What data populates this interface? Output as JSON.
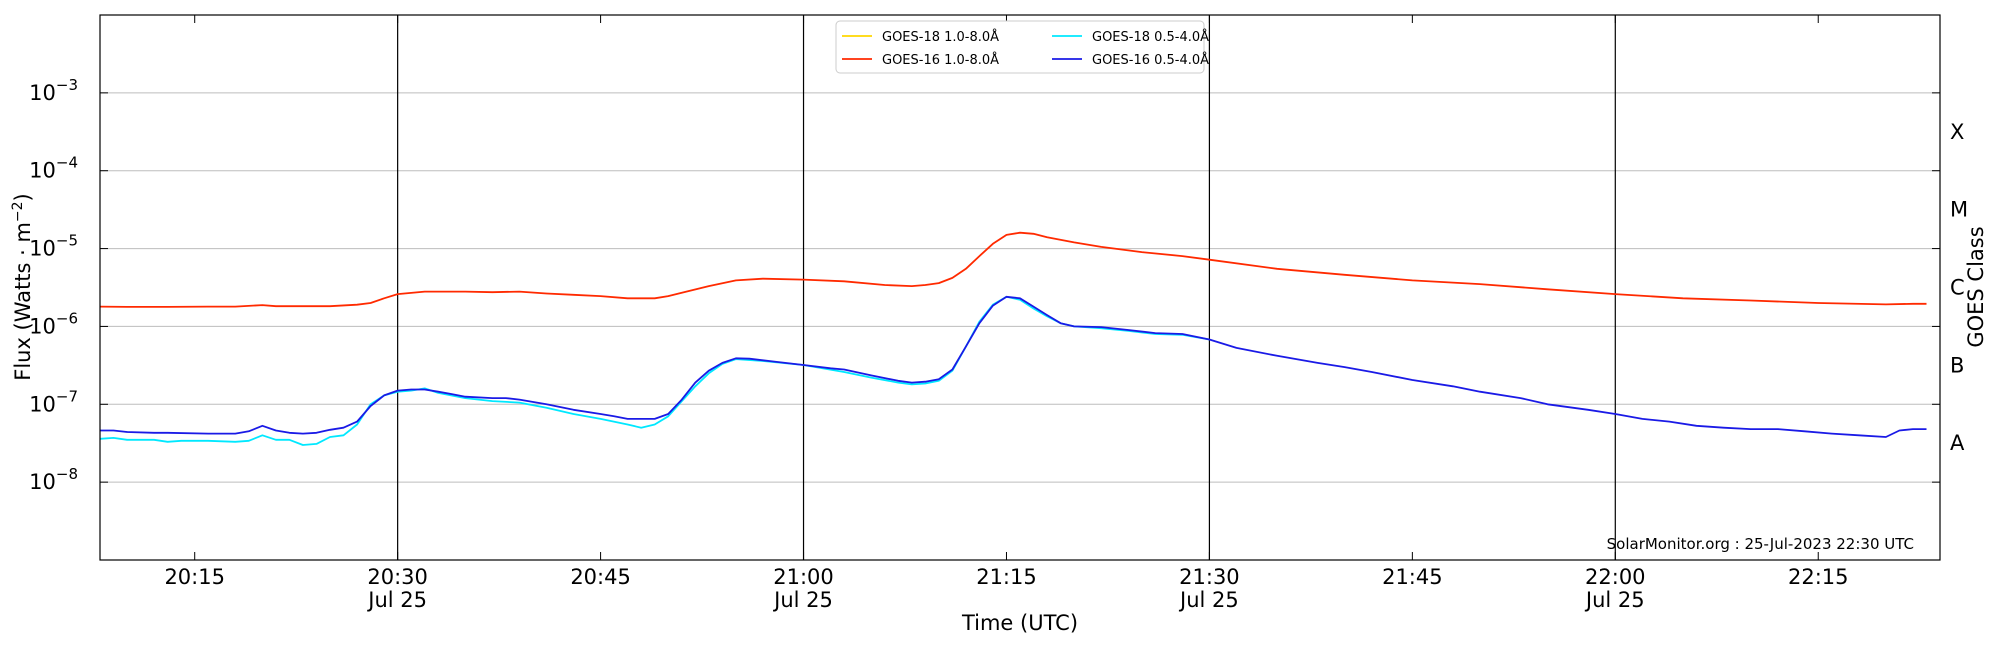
{
  "chart_data": {
    "type": "line",
    "title": "",
    "xlabel": "Time (UTC)",
    "ylabel": "Flux (Watts · m⁻²)",
    "ylabel_right": "GOES Class",
    "yscale": "log",
    "ylim": [
      1e-09,
      0.01
    ],
    "xlim": [
      "20:08",
      "22:24"
    ],
    "y_ticks": [
      {
        "value": 1e-08,
        "base": "10",
        "exp": "−8"
      },
      {
        "value": 1e-07,
        "base": "10",
        "exp": "−7"
      },
      {
        "value": 1e-06,
        "base": "10",
        "exp": "−6"
      },
      {
        "value": 1e-05,
        "base": "10",
        "exp": "−5"
      },
      {
        "value": 0.0001,
        "base": "10",
        "exp": "−4"
      },
      {
        "value": 0.001,
        "base": "10",
        "exp": "−3"
      }
    ],
    "x_ticks": [
      {
        "time": "20:15",
        "label": "20:15",
        "sublabel": ""
      },
      {
        "time": "20:30",
        "label": "20:30",
        "sublabel": "Jul 25"
      },
      {
        "time": "20:45",
        "label": "20:45",
        "sublabel": ""
      },
      {
        "time": "21:00",
        "label": "21:00",
        "sublabel": "Jul 25"
      },
      {
        "time": "21:15",
        "label": "21:15",
        "sublabel": ""
      },
      {
        "time": "21:30",
        "label": "21:30",
        "sublabel": "Jul 25"
      },
      {
        "time": "21:45",
        "label": "21:45",
        "sublabel": ""
      },
      {
        "time": "22:00",
        "label": "22:00",
        "sublabel": "Jul 25"
      },
      {
        "time": "22:15",
        "label": "22:15",
        "sublabel": ""
      }
    ],
    "vertical_lines": [
      "20:30",
      "21:00",
      "21:30",
      "22:00"
    ],
    "class_labels": [
      {
        "label": "A",
        "value": 1e-08
      },
      {
        "label": "B",
        "value": 1e-07
      },
      {
        "label": "C",
        "value": 1e-06
      },
      {
        "label": "M",
        "value": 1e-05
      },
      {
        "label": "X",
        "value": 0.0001
      }
    ],
    "legend_position": "top-center",
    "annotation": "SolarMonitor.org : 25-Jul-2023 22:30 UTC",
    "grid": "horizontal",
    "series": [
      {
        "name": "GOES-18 1.0-8.0Å",
        "color": "#ffd700",
        "points": []
      },
      {
        "name": "GOES-16 1.0-8.0Å",
        "color": "#ff2a00",
        "points": [
          [
            "20:08",
            1.8e-06
          ],
          [
            "20:10",
            1.78e-06
          ],
          [
            "20:13",
            1.78e-06
          ],
          [
            "20:16",
            1.8e-06
          ],
          [
            "20:18",
            1.8e-06
          ],
          [
            "20:20",
            1.88e-06
          ],
          [
            "20:21",
            1.82e-06
          ],
          [
            "20:25",
            1.82e-06
          ],
          [
            "20:27",
            1.9e-06
          ],
          [
            "20:28",
            2e-06
          ],
          [
            "20:29",
            2.3e-06
          ],
          [
            "20:30",
            2.6e-06
          ],
          [
            "20:32",
            2.8e-06
          ],
          [
            "20:35",
            2.8e-06
          ],
          [
            "20:37",
            2.75e-06
          ],
          [
            "20:39",
            2.8e-06
          ],
          [
            "20:41",
            2.65e-06
          ],
          [
            "20:43",
            2.55e-06
          ],
          [
            "20:45",
            2.45e-06
          ],
          [
            "20:47",
            2.3e-06
          ],
          [
            "20:49",
            2.3e-06
          ],
          [
            "20:50",
            2.45e-06
          ],
          [
            "20:51",
            2.7e-06
          ],
          [
            "20:53",
            3.3e-06
          ],
          [
            "20:55",
            3.9e-06
          ],
          [
            "20:57",
            4.1e-06
          ],
          [
            "21:00",
            4e-06
          ],
          [
            "21:03",
            3.8e-06
          ],
          [
            "21:06",
            3.4e-06
          ],
          [
            "21:08",
            3.3e-06
          ],
          [
            "21:09",
            3.4e-06
          ],
          [
            "21:10",
            3.6e-06
          ],
          [
            "21:11",
            4.2e-06
          ],
          [
            "21:12",
            5.5e-06
          ],
          [
            "21:13",
            8e-06
          ],
          [
            "21:14",
            1.15e-05
          ],
          [
            "21:15",
            1.5e-05
          ],
          [
            "21:16",
            1.6e-05
          ],
          [
            "21:17",
            1.55e-05
          ],
          [
            "21:18",
            1.4e-05
          ],
          [
            "21:20",
            1.2e-05
          ],
          [
            "21:22",
            1.05e-05
          ],
          [
            "21:25",
            9e-06
          ],
          [
            "21:28",
            8e-06
          ],
          [
            "21:30",
            7.2e-06
          ],
          [
            "21:35",
            5.5e-06
          ],
          [
            "21:40",
            4.6e-06
          ],
          [
            "21:45",
            3.9e-06
          ],
          [
            "21:50",
            3.5e-06
          ],
          [
            "21:55",
            3e-06
          ],
          [
            "22:00",
            2.6e-06
          ],
          [
            "22:05",
            2.3e-06
          ],
          [
            "22:10",
            2.15e-06
          ],
          [
            "22:15",
            2e-06
          ],
          [
            "22:20",
            1.92e-06
          ],
          [
            "22:22",
            1.95e-06
          ],
          [
            "22:23",
            1.95e-06
          ]
        ]
      },
      {
        "name": "GOES-18 0.5-4.0Å",
        "color": "#00e8ff",
        "points": [
          [
            "20:08",
            3.6e-08
          ],
          [
            "20:09",
            3.7e-08
          ],
          [
            "20:10",
            3.5e-08
          ],
          [
            "20:12",
            3.5e-08
          ],
          [
            "20:13",
            3.3e-08
          ],
          [
            "20:14",
            3.4e-08
          ],
          [
            "20:16",
            3.4e-08
          ],
          [
            "20:18",
            3.3e-08
          ],
          [
            "20:19",
            3.4e-08
          ],
          [
            "20:20",
            4e-08
          ],
          [
            "20:21",
            3.5e-08
          ],
          [
            "20:22",
            3.5e-08
          ],
          [
            "20:23",
            3e-08
          ],
          [
            "20:24",
            3.1e-08
          ],
          [
            "20:25",
            3.8e-08
          ],
          [
            "20:26",
            4e-08
          ],
          [
            "20:27",
            5.5e-08
          ],
          [
            "20:28",
            1e-07
          ],
          [
            "20:29",
            1.3e-07
          ],
          [
            "20:30",
            1.45e-07
          ],
          [
            "20:31",
            1.5e-07
          ],
          [
            "20:32",
            1.6e-07
          ],
          [
            "20:33",
            1.4e-07
          ],
          [
            "20:35",
            1.2e-07
          ],
          [
            "20:37",
            1.1e-07
          ],
          [
            "20:39",
            1.05e-07
          ],
          [
            "20:41",
            9e-08
          ],
          [
            "20:43",
            7.5e-08
          ],
          [
            "20:45",
            6.5e-08
          ],
          [
            "20:47",
            5.5e-08
          ],
          [
            "20:48",
            5e-08
          ],
          [
            "20:49",
            5.5e-08
          ],
          [
            "20:50",
            7e-08
          ],
          [
            "20:51",
            1.1e-07
          ],
          [
            "20:52",
            1.7e-07
          ],
          [
            "20:53",
            2.5e-07
          ],
          [
            "20:54",
            3.3e-07
          ],
          [
            "20:55",
            3.8e-07
          ],
          [
            "20:57",
            3.6e-07
          ],
          [
            "21:00",
            3.2e-07
          ],
          [
            "21:03",
            2.6e-07
          ],
          [
            "21:05",
            2.2e-07
          ],
          [
            "21:07",
            1.9e-07
          ],
          [
            "21:08",
            1.8e-07
          ],
          [
            "21:09",
            1.85e-07
          ],
          [
            "21:10",
            2e-07
          ],
          [
            "21:11",
            2.7e-07
          ],
          [
            "21:12",
            5.5e-07
          ],
          [
            "21:13",
            1.15e-06
          ],
          [
            "21:14",
            1.9e-06
          ],
          [
            "21:15",
            2.4e-06
          ],
          [
            "21:16",
            2.2e-06
          ],
          [
            "21:17",
            1.7e-06
          ],
          [
            "21:18",
            1.35e-06
          ],
          [
            "21:19",
            1.1e-06
          ],
          [
            "21:20",
            1e-06
          ],
          [
            "21:22",
            9.5e-07
          ],
          [
            "21:24",
            8.8e-07
          ],
          [
            "21:26",
            8e-07
          ],
          [
            "21:28",
            7.8e-07
          ],
          [
            "21:30",
            6.8e-07
          ]
        ]
      },
      {
        "name": "GOES-16 0.5-4.0Å",
        "color": "#1a1ae6",
        "points": [
          [
            "20:08",
            4.6e-08
          ],
          [
            "20:09",
            4.6e-08
          ],
          [
            "20:10",
            4.4e-08
          ],
          [
            "20:12",
            4.3e-08
          ],
          [
            "20:13",
            4.3e-08
          ],
          [
            "20:16",
            4.2e-08
          ],
          [
            "20:18",
            4.2e-08
          ],
          [
            "20:19",
            4.5e-08
          ],
          [
            "20:20",
            5.3e-08
          ],
          [
            "20:21",
            4.6e-08
          ],
          [
            "20:22",
            4.3e-08
          ],
          [
            "20:23",
            4.2e-08
          ],
          [
            "20:24",
            4.3e-08
          ],
          [
            "20:25",
            4.7e-08
          ],
          [
            "20:26",
            5e-08
          ],
          [
            "20:27",
            6e-08
          ],
          [
            "20:28",
            9.5e-08
          ],
          [
            "20:29",
            1.3e-07
          ],
          [
            "20:30",
            1.5e-07
          ],
          [
            "20:31",
            1.55e-07
          ],
          [
            "20:32",
            1.55e-07
          ],
          [
            "20:33",
            1.45e-07
          ],
          [
            "20:34",
            1.35e-07
          ],
          [
            "20:35",
            1.25e-07
          ],
          [
            "20:37",
            1.2e-07
          ],
          [
            "20:38",
            1.2e-07
          ],
          [
            "20:39",
            1.15e-07
          ],
          [
            "20:41",
            1e-07
          ],
          [
            "20:43",
            8.5e-08
          ],
          [
            "20:45",
            7.5e-08
          ],
          [
            "20:46",
            7e-08
          ],
          [
            "20:47",
            6.5e-08
          ],
          [
            "20:49",
            6.5e-08
          ],
          [
            "20:50",
            7.5e-08
          ],
          [
            "20:51",
            1.15e-07
          ],
          [
            "20:52",
            1.9e-07
          ],
          [
            "20:53",
            2.7e-07
          ],
          [
            "20:54",
            3.4e-07
          ],
          [
            "20:55",
            3.9e-07
          ],
          [
            "20:56",
            3.85e-07
          ],
          [
            "20:58",
            3.5e-07
          ],
          [
            "21:00",
            3.2e-07
          ],
          [
            "21:02",
            2.9e-07
          ],
          [
            "21:03",
            2.8e-07
          ],
          [
            "21:05",
            2.35e-07
          ],
          [
            "21:07",
            2e-07
          ],
          [
            "21:08",
            1.9e-07
          ],
          [
            "21:09",
            1.95e-07
          ],
          [
            "21:10",
            2.1e-07
          ],
          [
            "21:11",
            2.8e-07
          ],
          [
            "21:12",
            5.5e-07
          ],
          [
            "21:13",
            1.1e-06
          ],
          [
            "21:14",
            1.85e-06
          ],
          [
            "21:15",
            2.4e-06
          ],
          [
            "21:16",
            2.3e-06
          ],
          [
            "21:17",
            1.8e-06
          ],
          [
            "21:18",
            1.4e-06
          ],
          [
            "21:19",
            1.1e-06
          ],
          [
            "21:20",
            1e-06
          ],
          [
            "21:22",
            9.8e-07
          ],
          [
            "21:24",
            9e-07
          ],
          [
            "21:26",
            8.2e-07
          ],
          [
            "21:28",
            8e-07
          ],
          [
            "21:30",
            6.8e-07
          ],
          [
            "21:32",
            5.3e-07
          ],
          [
            "21:35",
            4.2e-07
          ],
          [
            "21:38",
            3.4e-07
          ],
          [
            "21:40",
            3e-07
          ],
          [
            "21:42",
            2.6e-07
          ],
          [
            "21:45",
            2.05e-07
          ],
          [
            "21:48",
            1.7e-07
          ],
          [
            "21:50",
            1.45e-07
          ],
          [
            "21:53",
            1.2e-07
          ],
          [
            "21:55",
            1e-07
          ],
          [
            "21:58",
            8.5e-08
          ],
          [
            "22:00",
            7.5e-08
          ],
          [
            "22:02",
            6.5e-08
          ],
          [
            "22:04",
            6e-08
          ],
          [
            "22:06",
            5.3e-08
          ],
          [
            "22:08",
            5e-08
          ],
          [
            "22:10",
            4.8e-08
          ],
          [
            "22:12",
            4.8e-08
          ],
          [
            "22:14",
            4.5e-08
          ],
          [
            "22:16",
            4.2e-08
          ],
          [
            "22:18",
            4e-08
          ],
          [
            "22:20",
            3.8e-08
          ],
          [
            "22:21",
            4.6e-08
          ],
          [
            "22:22",
            4.8e-08
          ],
          [
            "22:23",
            4.8e-08
          ]
        ]
      }
    ]
  }
}
